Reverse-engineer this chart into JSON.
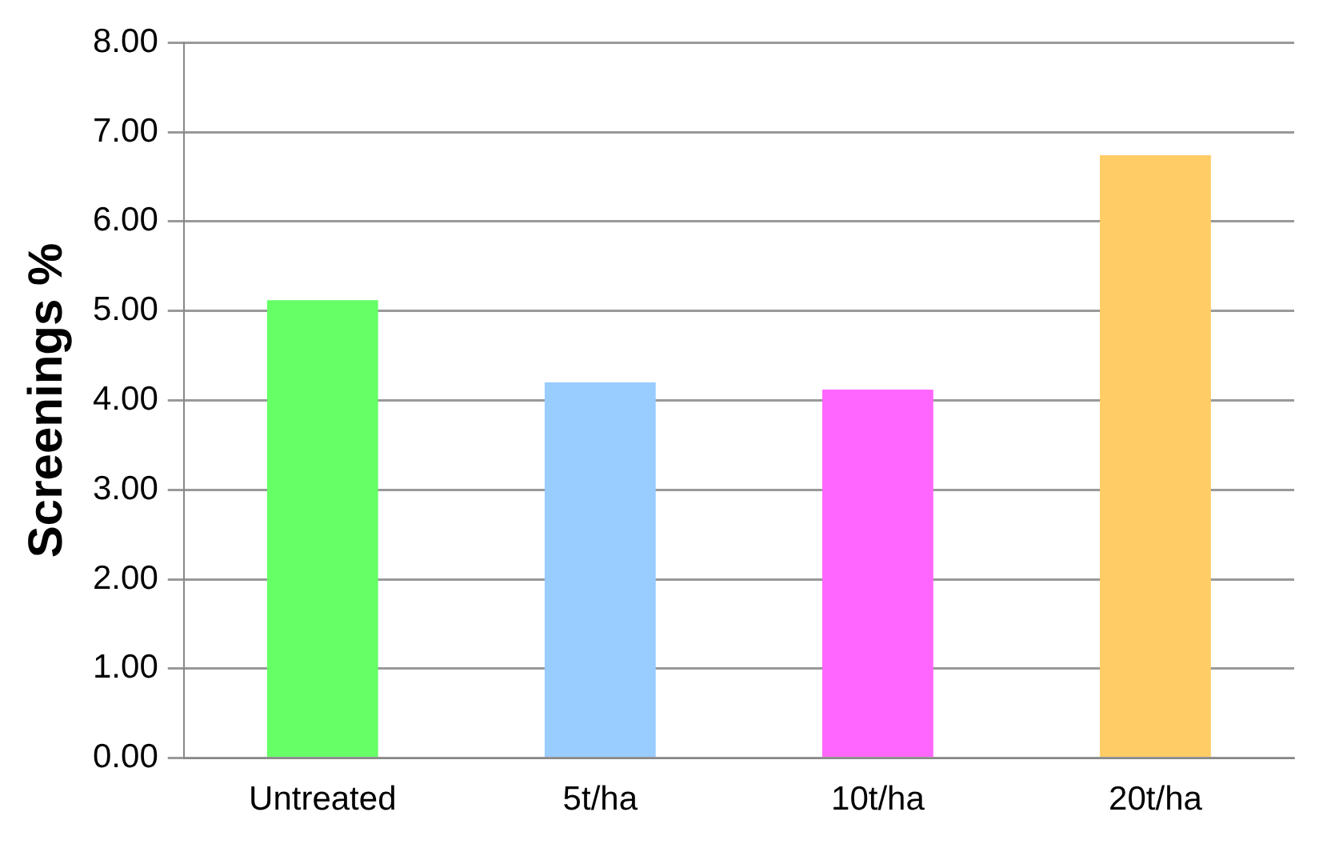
{
  "chart_data": {
    "type": "bar",
    "ylabel": "Screenings %",
    "categories": [
      "Untreated",
      "5t/ha",
      "10t/ha",
      "20t/ha"
    ],
    "values": [
      5.12,
      4.2,
      4.12,
      6.74
    ],
    "colors": [
      "#66ff66",
      "#99ccff",
      "#ff66ff",
      "#ffcc66"
    ],
    "ylim": [
      0,
      8
    ],
    "yticks": [
      {
        "value": 0,
        "label": "0.00"
      },
      {
        "value": 1,
        "label": "1.00"
      },
      {
        "value": 2,
        "label": "2.00"
      },
      {
        "value": 3,
        "label": "3.00"
      },
      {
        "value": 4,
        "label": "4.00"
      },
      {
        "value": 5,
        "label": "5.00"
      },
      {
        "value": 6,
        "label": "6.00"
      },
      {
        "value": 7,
        "label": "7.00"
      },
      {
        "value": 8,
        "label": "8.00"
      }
    ],
    "grid": "y",
    "legend": false
  }
}
